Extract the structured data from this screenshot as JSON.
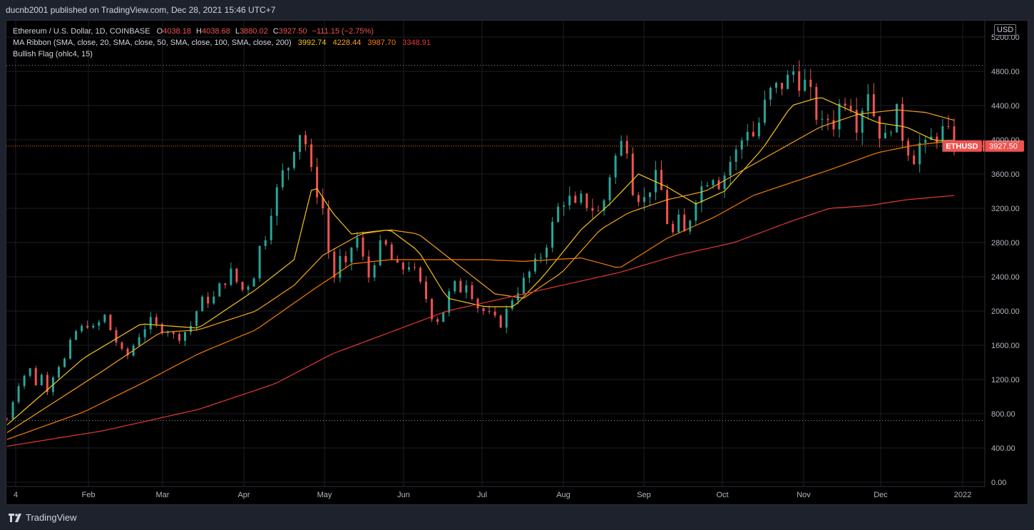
{
  "header": {
    "published": "ducnb2001 published on TradingView.com, Dec 28, 2021 15:46 UTC+7"
  },
  "legend": {
    "symbol_line": "Ethereum / U.S. Dollar, 1D, COINBASE",
    "o_label": "O",
    "o_value": "4038.18",
    "h_label": "H",
    "h_value": "4038.68",
    "l_label": "L",
    "l_value": "3880.02",
    "c_label": "C",
    "c_value": "3927.50",
    "change": "−111.15 (−2.75%)",
    "ma_label": "MA Ribbon (SMA, close, 20, SMA, close, 50, SMA, close, 100, SMA, close, 200)",
    "ma20": "3992.74",
    "ma50": "4228.44",
    "ma100": "3987.70",
    "ma200": "3348.91",
    "flag_label": "Bullish Flag (ohlc4, 15)"
  },
  "currency_badge": "USD",
  "price_tag": {
    "symbol": "ETHUSD",
    "value": "3927.50"
  },
  "branding": "TradingView",
  "colors": {
    "up": "#26a69a",
    "down": "#ef5350",
    "ma20": "#f5c518",
    "ma50": "#f7a21b",
    "ma100": "#f57c00",
    "ma200": "#e53935",
    "price_line": "#f57c00"
  },
  "chart_data": {
    "type": "candlestick",
    "y_axis": {
      "min": 0,
      "max": 5200,
      "ticks": [
        "0.00",
        "400.00",
        "800.00",
        "1200.00",
        "1600.00",
        "2000.00",
        "2400.00",
        "2800.00",
        "3200.00",
        "3600.00",
        "4000.00",
        "4400.00",
        "4800.00",
        "5200.00"
      ]
    },
    "x_axis": {
      "ticks": [
        "4",
        "Feb",
        "Mar",
        "Apr",
        "May",
        "Jun",
        "Jul",
        "Aug",
        "Sep",
        "Oct",
        "Nov",
        "Dec",
        "2022"
      ]
    },
    "flag_levels": [
      4870,
      720
    ],
    "last_close": 3927.5,
    "price_path": [
      [
        0,
        740
      ],
      [
        3,
        950
      ],
      [
        6,
        1150
      ],
      [
        9,
        1250
      ],
      [
        12,
        1320
      ],
      [
        15,
        1150
      ],
      [
        18,
        1250
      ],
      [
        21,
        1080
      ],
      [
        24,
        1250
      ],
      [
        27,
        1370
      ],
      [
        30,
        1430
      ],
      [
        33,
        1620
      ],
      [
        36,
        1760
      ],
      [
        39,
        1800
      ],
      [
        42,
        1850
      ],
      [
        45,
        1790
      ],
      [
        48,
        1860
      ],
      [
        51,
        1940
      ],
      [
        54,
        1780
      ],
      [
        57,
        1640
      ],
      [
        60,
        1520
      ],
      [
        63,
        1480
      ],
      [
        66,
        1600
      ],
      [
        69,
        1720
      ],
      [
        72,
        1810
      ],
      [
        75,
        1880
      ],
      [
        78,
        1820
      ],
      [
        81,
        1790
      ],
      [
        84,
        1780
      ],
      [
        87,
        1710
      ],
      [
        90,
        1700
      ],
      [
        93,
        1760
      ],
      [
        96,
        1830
      ],
      [
        99,
        2000
      ],
      [
        102,
        2120
      ],
      [
        105,
        2130
      ],
      [
        108,
        2150
      ],
      [
        111,
        2280
      ],
      [
        114,
        2360
      ],
      [
        117,
        2450
      ],
      [
        120,
        2340
      ],
      [
        123,
        2250
      ],
      [
        126,
        2320
      ],
      [
        129,
        2430
      ],
      [
        132,
        2740
      ],
      [
        135,
        2890
      ],
      [
        138,
        3200
      ],
      [
        141,
        3400
      ],
      [
        144,
        3600
      ],
      [
        147,
        3700
      ],
      [
        150,
        3950
      ],
      [
        153,
        4100
      ],
      [
        156,
        3960
      ],
      [
        159,
        3600
      ],
      [
        162,
        3400
      ],
      [
        165,
        3200
      ],
      [
        168,
        2700
      ],
      [
        171,
        2400
      ],
      [
        174,
        2600
      ],
      [
        177,
        2500
      ],
      [
        180,
        2750
      ],
      [
        183,
        2850
      ],
      [
        186,
        2600
      ],
      [
        189,
        2400
      ],
      [
        192,
        2600
      ],
      [
        195,
        2750
      ],
      [
        198,
        2750
      ],
      [
        201,
        2600
      ],
      [
        204,
        2500
      ],
      [
        207,
        2500
      ],
      [
        210,
        2550
      ],
      [
        213,
        2450
      ],
      [
        216,
        2300
      ],
      [
        219,
        2150
      ],
      [
        222,
        1950
      ],
      [
        225,
        1900
      ],
      [
        228,
        2000
      ],
      [
        231,
        2200
      ],
      [
        234,
        2300
      ],
      [
        237,
        2250
      ],
      [
        240,
        2350
      ],
      [
        243,
        2200
      ],
      [
        246,
        2050
      ],
      [
        249,
        2000
      ],
      [
        252,
        1950
      ],
      [
        255,
        1900
      ],
      [
        258,
        1850
      ],
      [
        261,
        2000
      ],
      [
        264,
        2150
      ],
      [
        267,
        2250
      ],
      [
        270,
        2350
      ],
      [
        273,
        2450
      ],
      [
        276,
        2550
      ],
      [
        279,
        2650
      ],
      [
        282,
        2800
      ],
      [
        285,
        3000
      ],
      [
        288,
        3200
      ],
      [
        291,
        3300
      ],
      [
        294,
        3300
      ],
      [
        297,
        3200
      ],
      [
        300,
        3300
      ],
      [
        303,
        3250
      ],
      [
        306,
        3200
      ],
      [
        309,
        3150
      ],
      [
        312,
        3300
      ],
      [
        315,
        3600
      ],
      [
        318,
        3800
      ],
      [
        321,
        3950
      ],
      [
        324,
        3950
      ],
      [
        327,
        3450
      ],
      [
        330,
        3350
      ],
      [
        333,
        3300
      ],
      [
        336,
        3450
      ],
      [
        339,
        3550
      ],
      [
        342,
        3400
      ],
      [
        345,
        3050
      ],
      [
        348,
        2900
      ],
      [
        351,
        3050
      ],
      [
        354,
        2900
      ],
      [
        357,
        3100
      ],
      [
        360,
        3350
      ],
      [
        363,
        3450
      ],
      [
        366,
        3550
      ],
      [
        369,
        3600
      ],
      [
        372,
        3500
      ],
      [
        375,
        3600
      ],
      [
        378,
        3750
      ],
      [
        381,
        3850
      ],
      [
        384,
        4000
      ],
      [
        387,
        4150
      ],
      [
        390,
        4050
      ],
      [
        393,
        4200
      ],
      [
        396,
        4400
      ],
      [
        399,
        4550
      ],
      [
        402,
        4600
      ],
      [
        405,
        4650
      ],
      [
        408,
        4700
      ],
      [
        411,
        4800
      ],
      [
        414,
        4700
      ],
      [
        417,
        4650
      ],
      [
        420,
        4500
      ],
      [
        423,
        4300
      ],
      [
        426,
        4150
      ],
      [
        429,
        4250
      ],
      [
        432,
        4200
      ],
      [
        435,
        4400
      ],
      [
        438,
        4500
      ],
      [
        441,
        4450
      ],
      [
        444,
        4200
      ],
      [
        447,
        4400
      ],
      [
        450,
        4600
      ],
      [
        453,
        4300
      ],
      [
        456,
        4100
      ],
      [
        459,
        4000
      ],
      [
        462,
        4200
      ],
      [
        465,
        4300
      ],
      [
        468,
        4050
      ],
      [
        471,
        3900
      ],
      [
        474,
        3800
      ],
      [
        477,
        3950
      ],
      [
        480,
        3900
      ],
      [
        483,
        4000
      ],
      [
        486,
        4050
      ],
      [
        489,
        4100
      ],
      [
        492,
        4050
      ],
      [
        495,
        3930
      ]
    ],
    "ma20": [
      [
        0,
        670
      ],
      [
        40,
        1450
      ],
      [
        70,
        1850
      ],
      [
        100,
        1800
      ],
      [
        130,
        2250
      ],
      [
        150,
        2600
      ],
      [
        160,
        3500
      ],
      [
        170,
        3150
      ],
      [
        180,
        2900
      ],
      [
        200,
        2950
      ],
      [
        215,
        2700
      ],
      [
        230,
        2150
      ],
      [
        250,
        2050
      ],
      [
        265,
        2050
      ],
      [
        280,
        2400
      ],
      [
        300,
        2950
      ],
      [
        315,
        3250
      ],
      [
        330,
        3600
      ],
      [
        345,
        3450
      ],
      [
        360,
        3250
      ],
      [
        375,
        3400
      ],
      [
        395,
        3900
      ],
      [
        410,
        4400
      ],
      [
        425,
        4500
      ],
      [
        440,
        4350
      ],
      [
        455,
        4200
      ],
      [
        470,
        4150
      ],
      [
        485,
        3990
      ],
      [
        495,
        3993
      ]
    ],
    "ma50": [
      [
        0,
        580
      ],
      [
        50,
        1300
      ],
      [
        80,
        1750
      ],
      [
        100,
        1780
      ],
      [
        130,
        2000
      ],
      [
        150,
        2300
      ],
      [
        165,
        2650
      ],
      [
        185,
        2900
      ],
      [
        200,
        2950
      ],
      [
        215,
        2900
      ],
      [
        235,
        2550
      ],
      [
        255,
        2200
      ],
      [
        270,
        2150
      ],
      [
        290,
        2450
      ],
      [
        310,
        2950
      ],
      [
        325,
        3150
      ],
      [
        345,
        3300
      ],
      [
        365,
        3400
      ],
      [
        385,
        3650
      ],
      [
        405,
        3900
      ],
      [
        425,
        4150
      ],
      [
        445,
        4300
      ],
      [
        465,
        4350
      ],
      [
        480,
        4320
      ],
      [
        495,
        4228
      ]
    ],
    "ma100": [
      [
        0,
        500
      ],
      [
        40,
        820
      ],
      [
        70,
        1150
      ],
      [
        100,
        1500
      ],
      [
        130,
        1780
      ],
      [
        160,
        2250
      ],
      [
        180,
        2550
      ],
      [
        200,
        2600
      ],
      [
        220,
        2600
      ],
      [
        250,
        2600
      ],
      [
        270,
        2580
      ],
      [
        300,
        2620
      ],
      [
        320,
        2500
      ],
      [
        345,
        2850
      ],
      [
        370,
        3100
      ],
      [
        390,
        3350
      ],
      [
        410,
        3500
      ],
      [
        430,
        3650
      ],
      [
        455,
        3850
      ],
      [
        475,
        3940
      ],
      [
        495,
        3988
      ]
    ],
    "ma200": [
      [
        0,
        420
      ],
      [
        50,
        600
      ],
      [
        100,
        850
      ],
      [
        140,
        1150
      ],
      [
        170,
        1500
      ],
      [
        200,
        1750
      ],
      [
        230,
        2000
      ],
      [
        260,
        2150
      ],
      [
        290,
        2300
      ],
      [
        320,
        2450
      ],
      [
        350,
        2650
      ],
      [
        380,
        2800
      ],
      [
        410,
        3050
      ],
      [
        430,
        3200
      ],
      [
        450,
        3230
      ],
      [
        470,
        3300
      ],
      [
        495,
        3349
      ]
    ]
  }
}
